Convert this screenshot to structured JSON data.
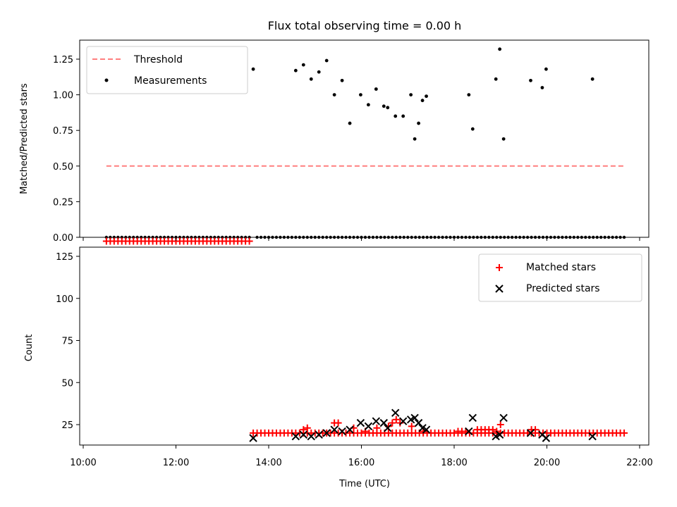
{
  "chart_data": [
    {
      "type": "scatter",
      "title": "Flux total observing time = 0.00 h",
      "xlabel": "",
      "ylabel": "Matched/Predicted stars",
      "xlim": [
        "10:00",
        "22:00"
      ],
      "ylim": [
        0,
        1.38
      ],
      "yticks": [
        "0.00",
        "0.25",
        "0.50",
        "0.75",
        "1.00",
        "1.25"
      ],
      "legend_position": "top-left",
      "series": [
        {
          "name": "Threshold",
          "kind": "dashed-line",
          "color": "#ff7f7f",
          "x": [
            "10:30",
            "21:40"
          ],
          "y": [
            0.5,
            0.5
          ]
        },
        {
          "name": "Measurements",
          "kind": "points",
          "color": "#000000",
          "x": [
            "13:40",
            "14:35",
            "14:45",
            "14:55",
            "15:05",
            "15:15",
            "15:25",
            "15:35",
            "15:45",
            "15:59",
            "16:09",
            "16:19",
            "16:29",
            "16:34",
            "16:44",
            "16:54",
            "17:04",
            "17:09",
            "17:14",
            "17:19",
            "17:24",
            "18:19",
            "18:24",
            "18:54",
            "18:59",
            "19:04",
            "19:39",
            "19:54",
            "19:59",
            "20:59"
          ],
          "y": [
            1.18,
            1.17,
            1.21,
            1.11,
            1.16,
            1.24,
            1.0,
            1.1,
            0.8,
            1.0,
            0.93,
            1.04,
            0.92,
            0.91,
            0.85,
            0.85,
            1.0,
            0.69,
            0.8,
            0.96,
            0.99,
            1.0,
            0.76,
            1.11,
            1.32,
            0.69,
            1.1,
            1.05,
            1.18,
            1.11
          ],
          "zero_x_ranges": [
            [
              "10:30",
              "13:35"
            ],
            [
              "13:45",
              "21:40"
            ]
          ],
          "zero_y": 0
        }
      ]
    },
    {
      "type": "scatter",
      "title": "",
      "xlabel": "Time (UTC)",
      "ylabel": "Count",
      "xlim": [
        "10:00",
        "22:00"
      ],
      "ylim": [
        10,
        140
      ],
      "yticks": [
        "25",
        "50",
        "75",
        "100",
        "125"
      ],
      "xticks": [
        "10:00",
        "12:00",
        "14:00",
        "16:00",
        "18:00",
        "20:00",
        "22:00"
      ],
      "legend_position": "top-right",
      "series": [
        {
          "name": "Matched stars",
          "marker": "plus",
          "color": "#ff0000",
          "segments": [
            {
              "from": "10:30",
              "to": "13:35",
              "step_min": 5,
              "y": 134
            },
            {
              "from": "13:40",
              "to": "21:40",
              "step_min": 5,
              "y": 20
            }
          ],
          "x": [
            "14:45",
            "14:50",
            "15:25",
            "15:30",
            "15:50",
            "16:05",
            "16:20",
            "16:35",
            "16:40",
            "16:45",
            "16:50",
            "17:05",
            "17:20",
            "18:05",
            "18:10",
            "18:15",
            "18:30",
            "18:35",
            "18:40",
            "18:45",
            "18:50",
            "18:55",
            "19:00",
            "19:40",
            "19:45"
          ],
          "y": [
            22,
            23,
            26,
            26,
            23,
            21,
            23,
            24,
            26,
            28,
            26,
            24,
            21,
            21,
            21,
            21,
            22,
            22,
            22,
            22,
            22,
            21,
            25,
            22,
            22
          ]
        },
        {
          "name": "Predicted stars",
          "marker": "x",
          "color": "#000000",
          "x": [
            "13:40",
            "14:35",
            "14:45",
            "14:55",
            "15:05",
            "15:15",
            "15:25",
            "15:35",
            "15:45",
            "15:59",
            "16:09",
            "16:19",
            "16:29",
            "16:34",
            "16:44",
            "16:54",
            "17:04",
            "17:09",
            "17:14",
            "17:19",
            "17:24",
            "18:19",
            "18:24",
            "18:54",
            "18:59",
            "19:04",
            "19:39",
            "19:54",
            "19:59",
            "20:59"
          ],
          "y": [
            17,
            18,
            19,
            18,
            19,
            20,
            22,
            21,
            22,
            26,
            24,
            27,
            26,
            23,
            32,
            27,
            28,
            29,
            26,
            23,
            22,
            21,
            29,
            18,
            19,
            29,
            20,
            19,
            17,
            18
          ]
        }
      ]
    }
  ]
}
